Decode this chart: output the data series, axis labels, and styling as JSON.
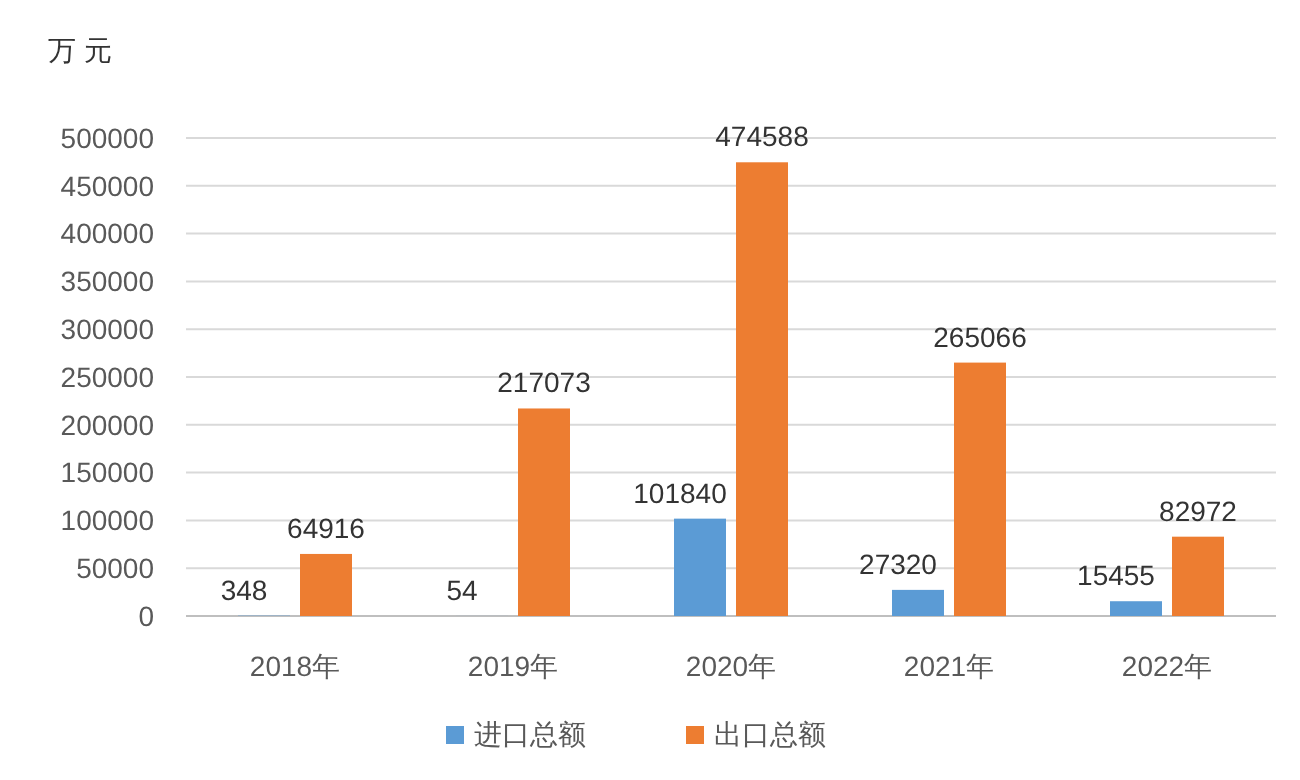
{
  "chart_data": {
    "type": "bar",
    "ylabel": "万 元",
    "categories": [
      "2018年",
      "2019年",
      "2020年",
      "2021年",
      "2022年"
    ],
    "series": [
      {
        "name": "进口总额",
        "color": "#5b9bd5",
        "values": [
          348,
          54,
          101840,
          27320,
          15455
        ]
      },
      {
        "name": "出口总额",
        "color": "#ed7d31",
        "values": [
          64916,
          217073,
          474588,
          265066,
          82972
        ]
      }
    ],
    "ylim": [
      0,
      500000
    ],
    "yticks": [
      0,
      50000,
      100000,
      150000,
      200000,
      250000,
      300000,
      350000,
      400000,
      450000,
      500000
    ],
    "grid": "y",
    "legend": "bottom",
    "data_labels": true
  }
}
